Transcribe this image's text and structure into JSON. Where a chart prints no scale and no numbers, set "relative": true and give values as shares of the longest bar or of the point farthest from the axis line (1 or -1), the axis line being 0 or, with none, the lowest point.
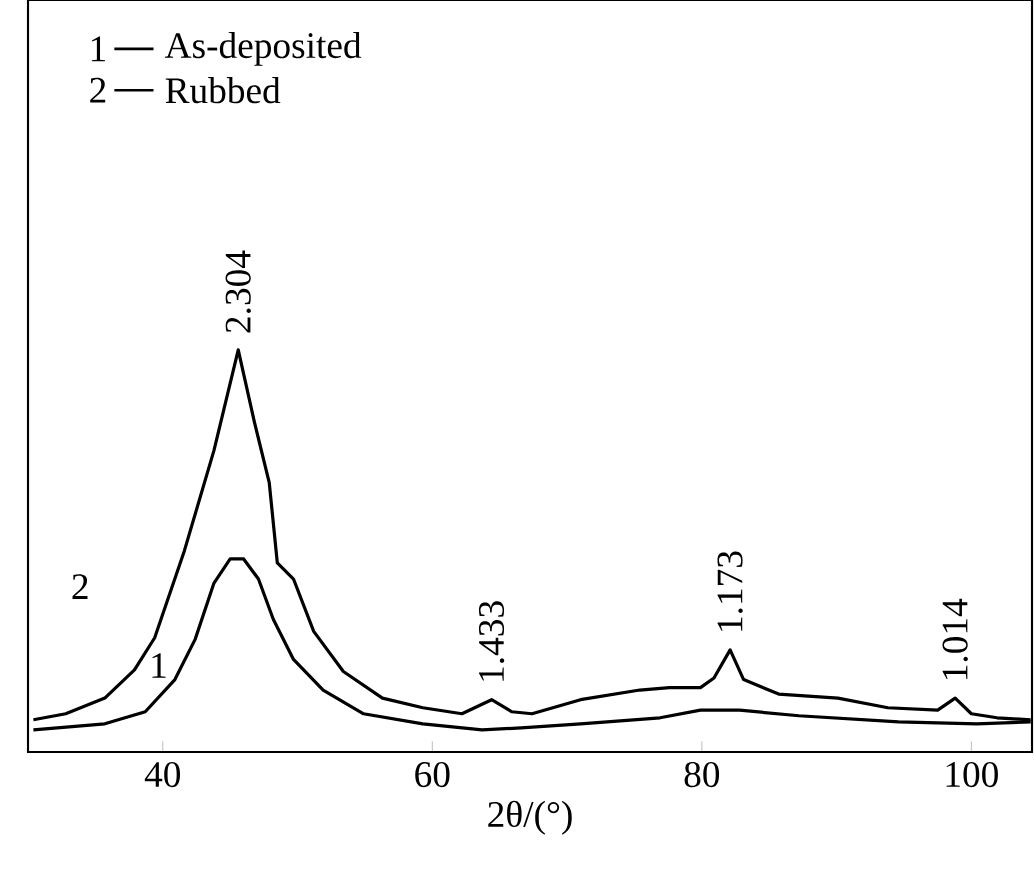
{
  "chart_data": {
    "type": "line",
    "relative": true,
    "xlabel": "2θ/(°)",
    "xlim": [
      30,
      104.5
    ],
    "xticks": [
      40,
      60,
      80,
      100
    ],
    "legend": "top left",
    "marker": "none",
    "line_style": "solid",
    "series": [
      {
        "name": "As-deposited",
        "color": "#000000",
        "x": [
          30.4,
          35.7,
          38.7,
          40.9,
          42.4,
          43.8,
          45.0,
          46.0,
          47.1,
          48.2,
          49.7,
          51.9,
          54.9,
          59.3,
          63.7,
          66.6,
          71.0,
          76.9,
          79.9,
          82.8,
          87.2,
          94.6,
          100.4,
          104.4
        ],
        "values": [
          0.055,
          0.07,
          0.1,
          0.18,
          0.28,
          0.42,
          0.48,
          0.48,
          0.43,
          0.33,
          0.23,
          0.154,
          0.095,
          0.07,
          0.055,
          0.06,
          0.07,
          0.085,
          0.104,
          0.104,
          0.09,
          0.075,
          0.07,
          0.075
        ]
      },
      {
        "name": "Rubbed",
        "color": "#000000",
        "x": [
          30.4,
          32.8,
          35.7,
          37.9,
          39.4,
          41.6,
          43.8,
          45.6,
          46.8,
          47.9,
          48.5,
          49.7,
          51.2,
          53.4,
          56.3,
          59.3,
          62.2,
          64.4,
          65.9,
          67.4,
          71.0,
          75.4,
          77.6,
          79.9,
          80.9,
          82.1,
          83.1,
          85.7,
          90.1,
          93.8,
          97.5,
          98.8,
          100.0,
          101.9,
          104.4
        ],
        "values": [
          0.08,
          0.095,
          0.134,
          0.204,
          0.284,
          0.5,
          0.75,
          1.0,
          0.82,
          0.67,
          0.47,
          0.43,
          0.3,
          0.2,
          0.134,
          0.11,
          0.095,
          0.13,
          0.1,
          0.095,
          0.13,
          0.154,
          0.16,
          0.16,
          0.184,
          0.254,
          0.18,
          0.144,
          0.134,
          0.11,
          0.104,
          0.134,
          0.095,
          0.085,
          0.08
        ]
      }
    ],
    "annotations": [
      {
        "text": "2.304",
        "x": 45.6,
        "y": 1.0
      },
      {
        "text": "1.433",
        "x": 64.4,
        "y": 0.13
      },
      {
        "text": "1.173",
        "x": 82.1,
        "y": 0.254
      },
      {
        "text": "1.014",
        "x": 98.8,
        "y": 0.134
      },
      "1",
      "2",
      "2",
      "1"
    ]
  }
}
